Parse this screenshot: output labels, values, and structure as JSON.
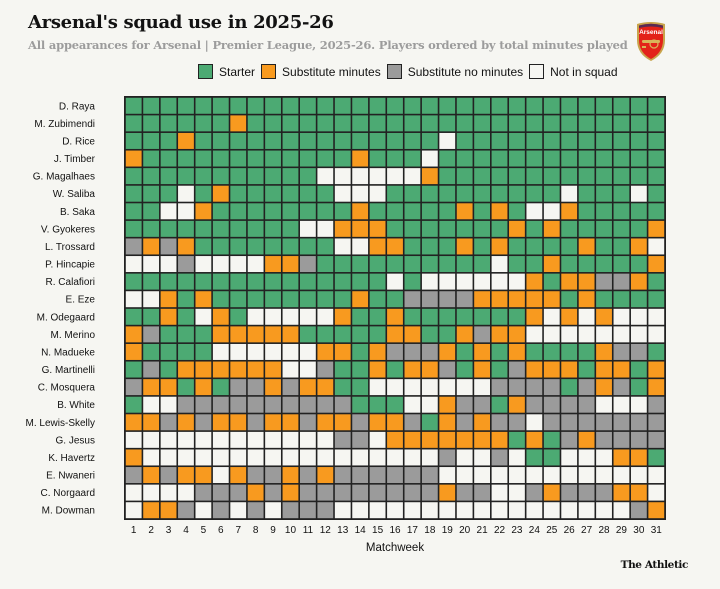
{
  "header": {
    "title": "Arsenal's squad use in 2025-26",
    "subtitle": "All appearances for Arsenal | Premier League, 2025-26. Players ordered by total minutes played",
    "logo_text": "Arsenal",
    "logo_icon": "arsenal-crest-icon"
  },
  "legend": [
    {
      "code": "S",
      "label": "Starter",
      "color": "#4caa73"
    },
    {
      "code": "U",
      "label": "Substitute minutes",
      "color": "#f89a1f"
    },
    {
      "code": "N",
      "label": "Substitute no minutes",
      "color": "#9b9b9b"
    },
    {
      "code": "X",
      "label": "Not in squad",
      "color": "#f6f6f2"
    }
  ],
  "footer": {
    "credit": "The Athletic"
  },
  "chart_data": {
    "type": "heatmap",
    "title": "Arsenal's squad use in 2025-26",
    "subtitle": "All appearances for Arsenal | Premier League, 2025-26. Players ordered by total minutes played",
    "xlabel": "Matchweek",
    "ylabel": "",
    "x": [
      1,
      2,
      3,
      4,
      5,
      6,
      7,
      8,
      9,
      10,
      11,
      12,
      13,
      14,
      15,
      16,
      17,
      18,
      19,
      20,
      21,
      22,
      23,
      24,
      25,
      26,
      27,
      28,
      29,
      30,
      31
    ],
    "legend_position": "top-center",
    "status_codes": {
      "S": "Starter",
      "U": "Substitute minutes",
      "N": "Substitute no minutes",
      "X": "Not in squad"
    },
    "rows": [
      {
        "player": "D. Raya",
        "status": "SSSSSSSSSSSSSSSSSSSSSSSSSSSSSSS"
      },
      {
        "player": "M. Zubimendi",
        "status": "SSSSSSUSSSSSSSSSSSSSSSSSSSSSSSS"
      },
      {
        "player": "D. Rice",
        "status": "SSSUSSSSSSSSSSSSSSXSSSSSSSSSSSS"
      },
      {
        "player": "J. Timber",
        "status": "USSSSSSSSSSSSUSSSXSSSSSSSSSSSSS"
      },
      {
        "player": "G. Magalhaes",
        "status": "SSSSSSSSSSSXXXXXXUSSSSSSSSSSSSS"
      },
      {
        "player": "W. Saliba",
        "status": "SSSXSUSSSSSSXXXSSSSSSSSSSXSSSXS"
      },
      {
        "player": "B. Saka",
        "status": "SSXXUSSSSSSSSUSSSSSUSUSXXUSSSSS"
      },
      {
        "player": "V. Gyokeres",
        "status": "SSSSSSSSSSXXUUUSSSSSSSUSUSSSSSU"
      },
      {
        "player": "L. Trossard",
        "status": "NUNUSSSSSSSSXXUUSSSUSUSSSSUSSUX"
      },
      {
        "player": "P. Hincapie",
        "status": "XXXNXXXXUUNSSSSSSSSSSXSSUSSSSSU"
      },
      {
        "player": "R. Calafiori",
        "status": "SSSSSSSSSSSSSSSXSXXXXXXUSUUNNUS"
      },
      {
        "player": "E. Eze",
        "status": "XXUSUSSSSSSSSUSSNNNNUUUUUSUSSSS"
      },
      {
        "player": "M. Odegaard",
        "status": "SSUSXUSXXXXXUSSUSSSSSSSUXUXUXXX"
      },
      {
        "player": "M. Merino",
        "status": "UNSSSUUUUUSSSSSUUSSUNUUXXXXXXXX"
      },
      {
        "player": "N. Madueke",
        "status": "USSSSXXXXXXUUSUNNNUSUSUSSSSUNNS"
      },
      {
        "player": "G. Martinelli",
        "status": "SNSUUUUUUXXNSSUSUUNSUSNUUUSUUSU"
      },
      {
        "player": "C. Mosquera",
        "status": "NUUSUSNNUNUUSSXXXXXXXNNNNSNUNSU"
      },
      {
        "player": "B. White",
        "status": "SXXNNNNNNNNNNSSSXXUNNSUNNNNXXXN"
      },
      {
        "player": "M. Lewis-Skelly",
        "status": "UUNUNUUNUUNUUNUUNSUNUNNXNNNNNNN"
      },
      {
        "player": "G. Jesus",
        "status": "XXXXXXXXXXXXNNXUUUUUUUSUSNUNNNN"
      },
      {
        "player": "K. Havertz",
        "status": "UXXXXXXXXXXXXXXXXXNXXNXSSXXXUUS"
      },
      {
        "player": "E. Nwaneri",
        "status": "NUNUUXUNNUNUNNNNNNXXXXXXXXXXXXX"
      },
      {
        "player": "C. Norgaard",
        "status": "XXXXNNNUNUNNNNNNNNUNNXXNUNNNUUX"
      },
      {
        "player": "M. Dowman",
        "status": "XUUNXNXNXNNNXXXXXXXXXXXXXXXXXNU"
      }
    ]
  }
}
